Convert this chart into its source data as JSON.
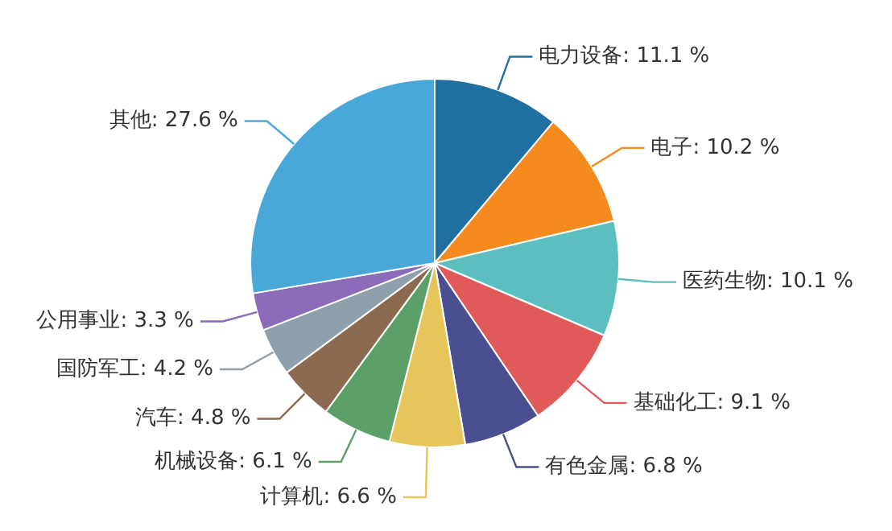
{
  "chart_data": {
    "type": "pie",
    "categories": [
      "电力设备",
      "电子",
      "医药生物",
      "基础化工",
      "有色金属",
      "计算机",
      "机械设备",
      "汽车",
      "国防军工",
      "公用事业",
      "其他"
    ],
    "values": [
      11.1,
      10.2,
      10.1,
      9.1,
      6.8,
      6.6,
      6.1,
      4.8,
      4.2,
      3.3,
      27.6
    ],
    "value_labels": [
      "11.1 %",
      "10.2 %",
      "10.1 %",
      "9.1 %",
      "6.8 %",
      "6.6 %",
      "6.1 %",
      "4.8 %",
      "4.2 %",
      "3.3 %",
      "27.6 %"
    ],
    "colors": [
      "#1f6fa0",
      "#f58a1f",
      "#5bbfbf",
      "#e05a5a",
      "#4a4f8f",
      "#e6c65a",
      "#5aa068",
      "#8b6a50",
      "#8fa0ad",
      "#8c6bb8",
      "#4aa8d8"
    ],
    "legend": false
  }
}
